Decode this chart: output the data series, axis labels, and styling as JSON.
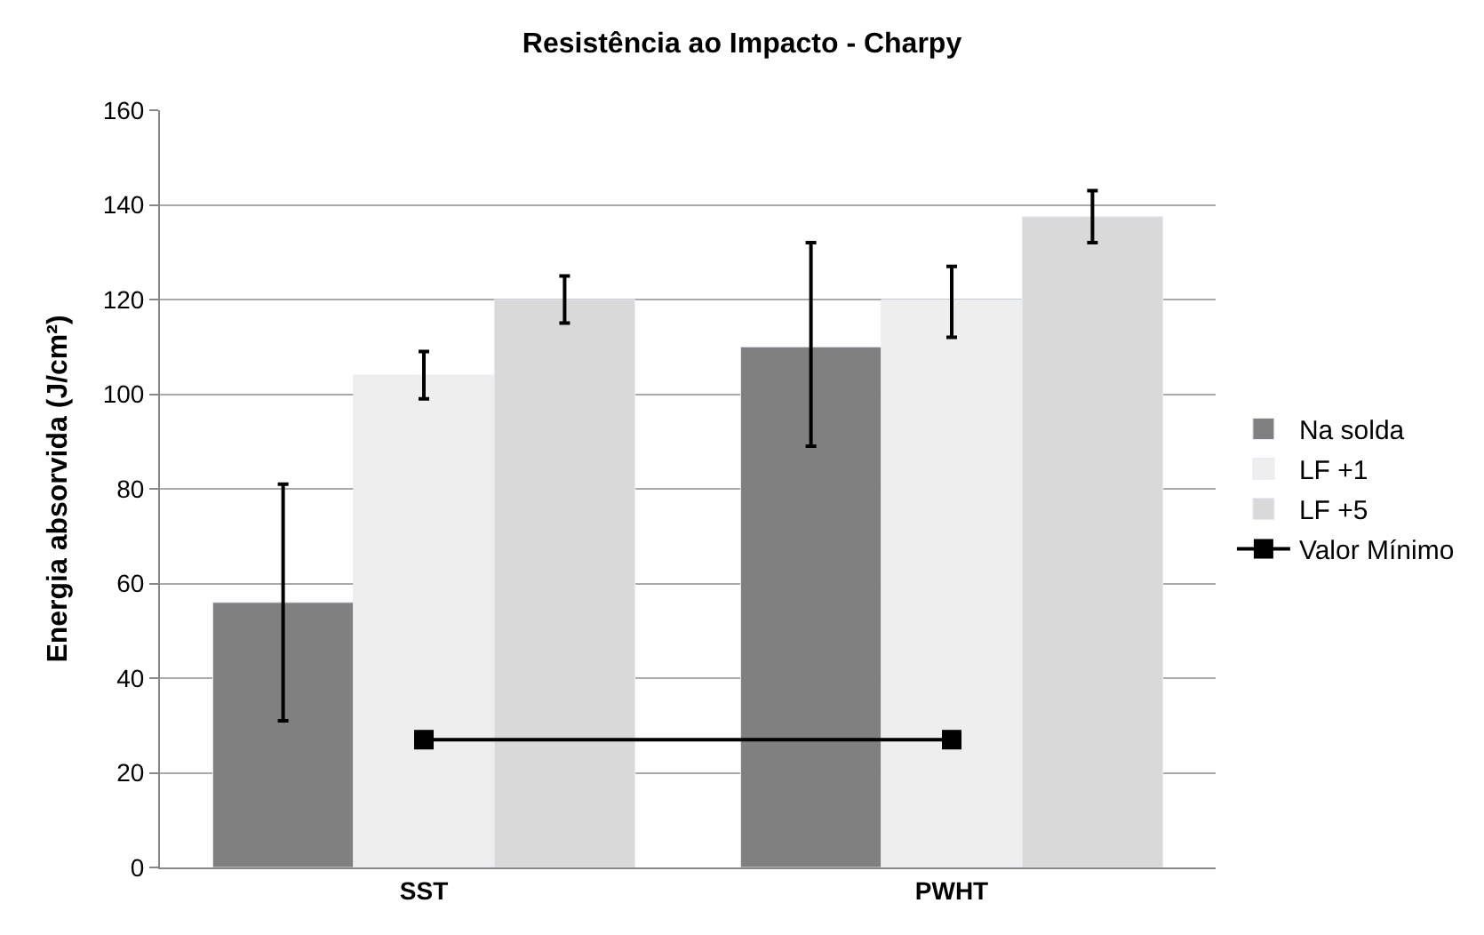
{
  "chart_data": {
    "type": "bar",
    "title": "Resistência ao Impacto - Charpy",
    "ylabel": "Energia absorvida (J/cm²)",
    "categories": [
      "SST",
      "PWHT"
    ],
    "series": [
      {
        "name": "Na solda",
        "color": "#808080",
        "values": [
          56,
          110
        ],
        "errors": [
          [
            31,
            81
          ],
          [
            89,
            132
          ]
        ]
      },
      {
        "name": "LF +1",
        "color": "#eeeeee",
        "values": [
          104,
          120
        ],
        "errors": [
          [
            99,
            109
          ],
          [
            112,
            127
          ]
        ]
      },
      {
        "name": "LF +5",
        "color": "#d9d9d9",
        "values": [
          120,
          137.5
        ],
        "errors": [
          [
            115,
            125
          ],
          [
            132,
            143
          ]
        ]
      },
      {
        "name": "Valor Mínimo",
        "type": "line",
        "color": "#000000",
        "marker": "square",
        "values": [
          27,
          27
        ]
      }
    ],
    "ylim": [
      0,
      160
    ],
    "yticks": [
      0,
      20,
      40,
      60,
      80,
      100,
      120,
      140,
      160
    ],
    "grid": "y",
    "legend": "right"
  }
}
